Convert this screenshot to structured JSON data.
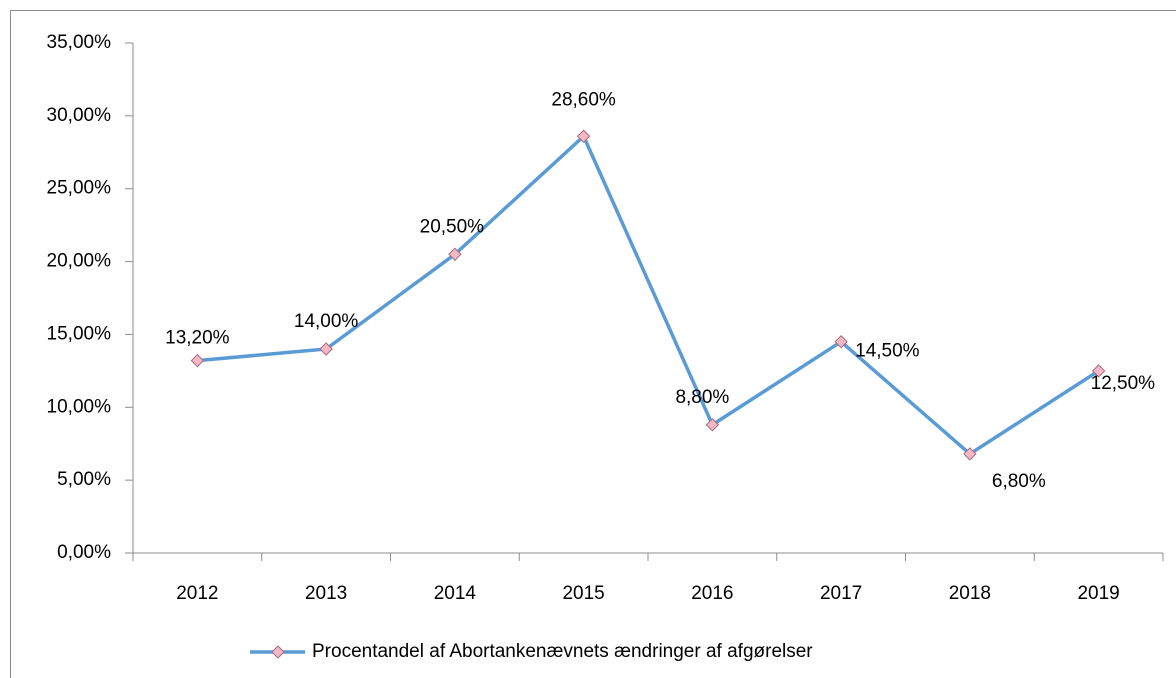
{
  "chart_data": {
    "type": "line",
    "categories": [
      "2012",
      "2013",
      "2014",
      "2015",
      "2016",
      "2017",
      "2018",
      "2019"
    ],
    "series": [
      {
        "name": "Procentandel af Abortankenævnets ændringer af afgørelser",
        "color": "#5b9bd5",
        "marker_color": "#f2b8c6",
        "values": [
          13.2,
          14.0,
          20.5,
          28.6,
          8.8,
          14.5,
          6.8,
          12.5
        ],
        "value_labels": [
          "13,20%",
          "14,00%",
          "20,50%",
          "28,60%",
          "8,80%",
          "14,50%",
          "6,80%",
          "12,50%"
        ]
      }
    ],
    "ylim": [
      0,
      35
    ],
    "yticks": [
      {
        "value": 0,
        "label": "0,00%"
      },
      {
        "value": 5,
        "label": "5,00%"
      },
      {
        "value": 10,
        "label": "10,00%"
      },
      {
        "value": 15,
        "label": "15,00%"
      },
      {
        "value": 20,
        "label": "20,00%"
      },
      {
        "value": 25,
        "label": "25,00%"
      },
      {
        "value": 30,
        "label": "30,00%"
      },
      {
        "value": 35,
        "label": "35,00%"
      }
    ],
    "grid": false,
    "legend": "bottom"
  }
}
